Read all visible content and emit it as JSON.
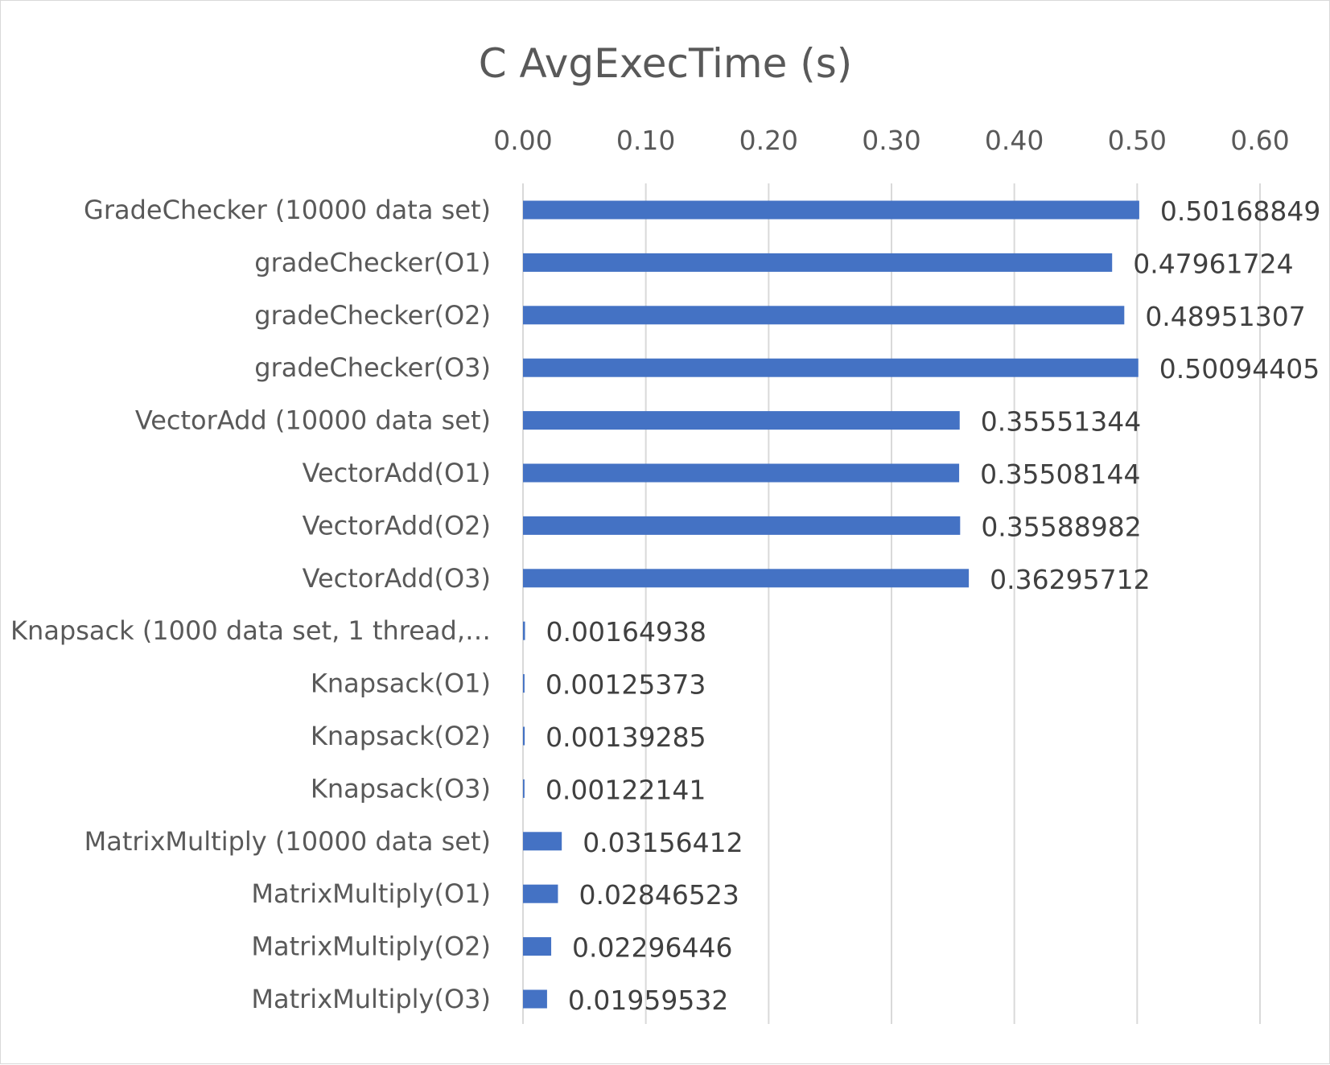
{
  "chart_data": {
    "type": "bar",
    "orientation": "horizontal",
    "title": "C AvgExecTime (s)",
    "xlabel": "",
    "ylabel": "",
    "xlim": [
      0,
      0.6
    ],
    "ticks": [
      "0.00",
      "0.10",
      "0.20",
      "0.30",
      "0.40",
      "0.50",
      "0.60"
    ],
    "tick_values": [
      0,
      0.1,
      0.2,
      0.3,
      0.4,
      0.5,
      0.6
    ],
    "grid": true,
    "legend": "none",
    "bar_color": "#4472C4",
    "categories": [
      "GradeChecker (10000 data set)",
      "gradeChecker(O1)",
      "gradeChecker(O2)",
      "gradeChecker(O3)",
      "VectorAdd (10000 data set)",
      "VectorAdd(O1)",
      "VectorAdd(O2)",
      "VectorAdd(O3)",
      "Knapsack (1000 data set, 1 thread,…",
      "Knapsack(O1)",
      "Knapsack(O2)",
      "Knapsack(O3)",
      "MatrixMultiply (10000 data set)",
      "MatrixMultiply(O1)",
      "MatrixMultiply(O2)",
      "MatrixMultiply(O3)"
    ],
    "values": [
      0.50168849,
      0.47961724,
      0.48951307,
      0.50094405,
      0.35551344,
      0.35508144,
      0.35588982,
      0.36295712,
      0.00164938,
      0.00125373,
      0.00139285,
      0.00122141,
      0.03156412,
      0.02846523,
      0.02296446,
      0.01959532
    ],
    "data_labels": [
      "0.50168849",
      "0.47961724",
      "0.48951307",
      "0.50094405",
      "0.35551344",
      "0.35508144",
      "0.35588982",
      "0.36295712",
      "0.00164938",
      "0.00125373",
      "0.00139285",
      "0.00122141",
      "0.03156412",
      "0.02846523",
      "0.02296446",
      "0.01959532"
    ]
  }
}
